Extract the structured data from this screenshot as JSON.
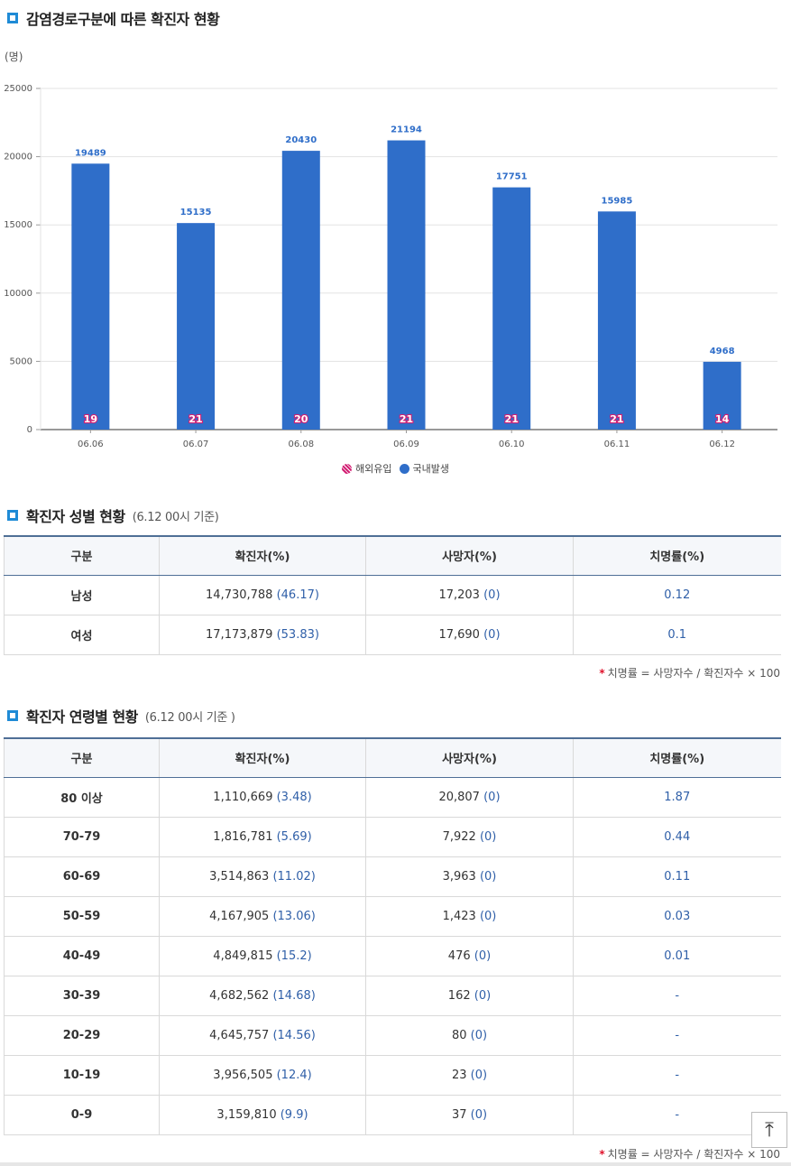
{
  "section1": {
    "title": "감염경로구분에 따른 확진자 현황",
    "unit": "(명)"
  },
  "chart_data": {
    "type": "bar",
    "categories": [
      "06.06",
      "06.07",
      "06.08",
      "06.09",
      "06.10",
      "06.11",
      "06.12"
    ],
    "series": [
      {
        "name": "국내발생",
        "values": [
          19489,
          15135,
          20430,
          21194,
          17751,
          15985,
          4968
        ]
      },
      {
        "name": "해외유입",
        "values": [
          19,
          21,
          20,
          21,
          21,
          21,
          14
        ]
      }
    ],
    "yticks": [
      0,
      5000,
      10000,
      15000,
      20000,
      25000
    ],
    "ylim": [
      0,
      25000
    ],
    "ylabel": "(명)",
    "legend": [
      "해외유입",
      "국내발생"
    ],
    "legend_position": "bottom-center",
    "colors": {
      "domestic": "#2f6ec9",
      "import": "#d21f73"
    },
    "grid": true
  },
  "section2": {
    "title": "확진자 성별 현황",
    "subtitle": "(6.12 00시 기준)",
    "headers": [
      "구분",
      "확진자(%)",
      "사망자(%)",
      "치명률(%)"
    ],
    "rows": [
      {
        "cat": "남성",
        "cases": "14,730,788",
        "cases_pct": "(46.17)",
        "deaths": "17,203",
        "deaths_pct": "(0)",
        "rate": "0.12"
      },
      {
        "cat": "여성",
        "cases": "17,173,879",
        "cases_pct": "(53.83)",
        "deaths": "17,690",
        "deaths_pct": "(0)",
        "rate": "0.1"
      }
    ],
    "note_star": "*",
    "note": "치명률 = 사망자수 / 확진자수 × 100"
  },
  "section3": {
    "title": "확진자 연령별 현황",
    "subtitle": "(6.12 00시 기준 )",
    "headers": [
      "구분",
      "확진자(%)",
      "사망자(%)",
      "치명률(%)"
    ],
    "rows": [
      {
        "cat": "80 이상",
        "cases": "1,110,669",
        "cases_pct": "(3.48)",
        "deaths": "20,807",
        "deaths_pct": "(0)",
        "rate": "1.87"
      },
      {
        "cat": "70-79",
        "cases": "1,816,781",
        "cases_pct": "(5.69)",
        "deaths": "7,922",
        "deaths_pct": "(0)",
        "rate": "0.44"
      },
      {
        "cat": "60-69",
        "cases": "3,514,863",
        "cases_pct": "(11.02)",
        "deaths": "3,963",
        "deaths_pct": "(0)",
        "rate": "0.11"
      },
      {
        "cat": "50-59",
        "cases": "4,167,905",
        "cases_pct": "(13.06)",
        "deaths": "1,423",
        "deaths_pct": "(0)",
        "rate": "0.03"
      },
      {
        "cat": "40-49",
        "cases": "4,849,815",
        "cases_pct": "(15.2)",
        "deaths": "476",
        "deaths_pct": "(0)",
        "rate": "0.01"
      },
      {
        "cat": "30-39",
        "cases": "4,682,562",
        "cases_pct": "(14.68)",
        "deaths": "162",
        "deaths_pct": "(0)",
        "rate": "-"
      },
      {
        "cat": "20-29",
        "cases": "4,645,757",
        "cases_pct": "(14.56)",
        "deaths": "80",
        "deaths_pct": "(0)",
        "rate": "-"
      },
      {
        "cat": "10-19",
        "cases": "3,956,505",
        "cases_pct": "(12.4)",
        "deaths": "23",
        "deaths_pct": "(0)",
        "rate": "-"
      },
      {
        "cat": "0-9",
        "cases": "3,159,810",
        "cases_pct": "(9.9)",
        "deaths": "37",
        "deaths_pct": "(0)",
        "rate": "-"
      }
    ],
    "note_star": "*",
    "note": "치명률 = 사망자수 / 확진자수 × 100"
  },
  "scroll_top": {
    "icon": "arrow-up-to-top-icon",
    "glyph": "⤒"
  }
}
